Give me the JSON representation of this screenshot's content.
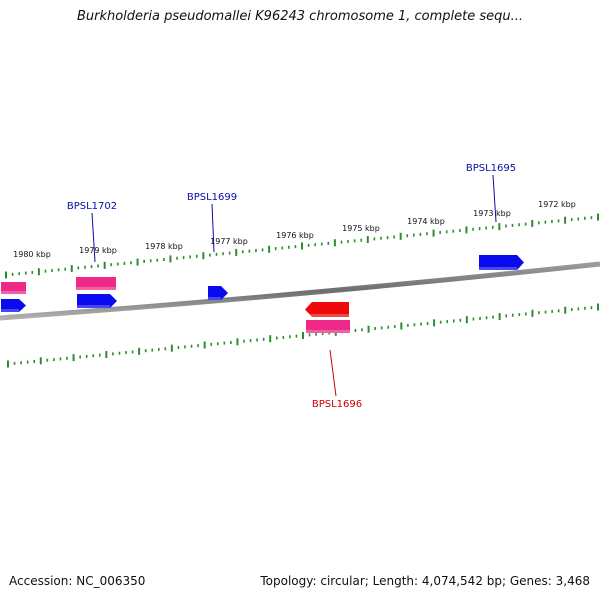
{
  "title": "Burkholderia pseudomallei K96243 chromosome 1, complete sequ...",
  "footer": {
    "accession": "Accession: NC_006350",
    "stats": "Topology: circular; Length: 4,074,542 bp; Genes: 3,468"
  },
  "colors": {
    "backbone": "#7a7a7a",
    "tick": "#2e8b2e",
    "gene_blue": "#0a0aee",
    "gene_pink": "#ee2a88",
    "gene_red": "#ee0a0a",
    "label_blue": "#0a0aa8",
    "label_red": "#cc0000"
  },
  "kbp_labels": [
    "1980 kbp",
    "1979 kbp",
    "1978 kbp",
    "1977 kbp",
    "1976 kbp",
    "1975 kbp",
    "1974 kbp",
    "1973 kbp",
    "1972 kbp"
  ],
  "gene_labels": [
    {
      "text": "BPSL1702",
      "color": "blue"
    },
    {
      "text": "BPSL1699",
      "color": "blue"
    },
    {
      "text": "BPSL1695",
      "color": "blue"
    },
    {
      "text": "BPSL1696",
      "color": "red"
    }
  ]
}
